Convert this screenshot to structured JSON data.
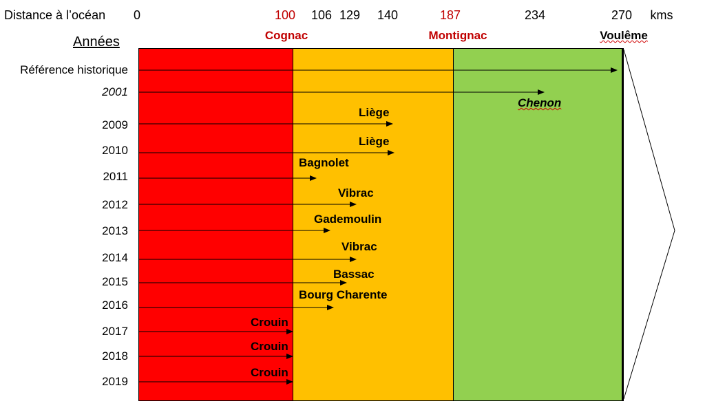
{
  "header": {
    "distance_label": "Distance à l’océan",
    "units_label": "kms",
    "distances": [
      "0",
      "100",
      "106",
      "129",
      "140",
      "187",
      "234",
      "270"
    ],
    "highlight_distances": [
      "100",
      "187"
    ],
    "towns": [
      {
        "name": "Cognac",
        "km": 100
      },
      {
        "name": "Montignac",
        "km": 187
      },
      {
        "name": "Voulême",
        "km": 270
      }
    ]
  },
  "years_title": "Années",
  "zones": [
    {
      "name": "zone-red",
      "color": "#ff0000"
    },
    {
      "name": "zone-orange",
      "color": "#ffc000"
    },
    {
      "name": "zone-green",
      "color": "#92d050"
    }
  ],
  "rows": [
    {
      "year": "Référence historique",
      "site": ""
    },
    {
      "year": "2001",
      "site": "Chenon"
    },
    {
      "year": "2009",
      "site": "Liège"
    },
    {
      "year": "2010",
      "site": "Liège"
    },
    {
      "year": "2011",
      "site": "Bagnolet"
    },
    {
      "year": "2012",
      "site": "Vibrac"
    },
    {
      "year": "2013",
      "site": "Gademoulin"
    },
    {
      "year": "2014",
      "site": "Vibrac"
    },
    {
      "year": "2015",
      "site": "Bassac"
    },
    {
      "year": "2016",
      "site": "Bourg Charente"
    },
    {
      "year": "2017",
      "site": "Crouin"
    },
    {
      "year": "2018",
      "site": "Crouin"
    },
    {
      "year": "2019",
      "site": "Crouin"
    }
  ]
}
